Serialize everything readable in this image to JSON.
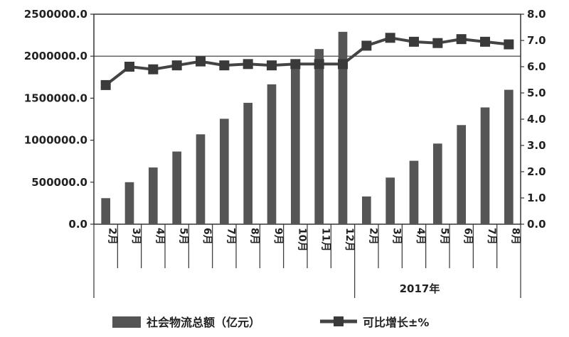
{
  "chart_data": {
    "type": "bar",
    "categories": [
      "2月",
      "3月",
      "4月",
      "5月",
      "6月",
      "7月",
      "8月",
      "9月",
      "10月",
      "11月",
      "12月",
      "2月",
      "3月",
      "4月",
      "5月",
      "6月",
      "7月",
      "8月"
    ],
    "group_label": "2017年",
    "series": [
      {
        "name": "社会物流总额（亿元）",
        "type": "bar",
        "axis": "left",
        "values": [
          310000,
          500000,
          675000,
          865000,
          1070000,
          1255000,
          1445000,
          1665000,
          1950000,
          2085000,
          2290000,
          330000,
          555000,
          755000,
          960000,
          1180000,
          1390000,
          1600000
        ]
      },
      {
        "name": "可比增长±%",
        "type": "line",
        "axis": "right",
        "values": [
          5.3,
          6.0,
          5.9,
          6.05,
          6.2,
          6.05,
          6.1,
          6.05,
          6.1,
          6.1,
          6.1,
          6.8,
          7.1,
          6.95,
          6.9,
          7.05,
          6.95,
          6.85
        ]
      }
    ],
    "y_left": {
      "ylim": [
        0,
        2500000
      ],
      "ticks": [
        "0.0",
        "500000.0",
        "1000000.0",
        "1500000.0",
        "2000000.0",
        "2500000.0"
      ]
    },
    "y_right": {
      "ylim": [
        0,
        8
      ],
      "ticks": [
        "0.0",
        "1.0",
        "2.0",
        "3.0",
        "4.0",
        "5.0",
        "6.0",
        "7.0",
        "8.0"
      ]
    },
    "grid": "horizontal at 2000000.0",
    "legend_position": "bottom",
    "colors": {
      "bar": "#555555",
      "line": "#444444",
      "marker": "#3a3a3a"
    }
  }
}
